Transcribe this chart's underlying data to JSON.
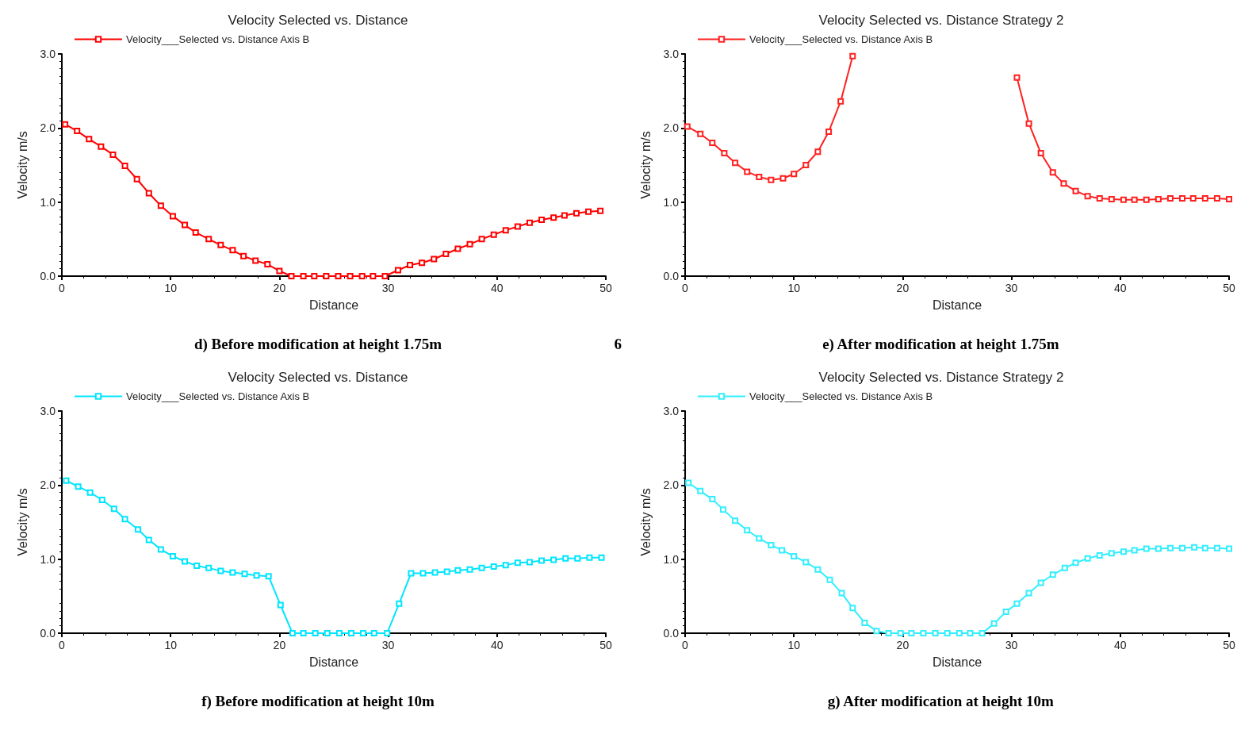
{
  "chart_data": [
    {
      "type": "line",
      "title": "Velocity Selected vs. Distance",
      "xlabel": "Distance",
      "ylabel": "Velocity m/s",
      "legend": "top left",
      "marker": "square",
      "line_style": "solid",
      "grid": false,
      "xlim": [
        0,
        50
      ],
      "xticks": [
        0,
        10,
        20,
        30,
        40,
        50
      ],
      "ylim": [
        0,
        3
      ],
      "yticks": [
        {
          "value": 0,
          "label": "0.0"
        },
        {
          "value": 1,
          "label": "1.0"
        },
        {
          "value": 2,
          "label": "2.0"
        },
        {
          "value": 3,
          "label": "3.0"
        }
      ],
      "annotations": [
        "d) Before modification at height 1.75m",
        "6"
      ],
      "series": [
        {
          "name": "Velocity___Selected vs. Distance Axis B",
          "color": "#ff0000",
          "x": [
            0.3,
            1.4,
            2.5,
            3.6,
            4.7,
            5.8,
            6.9,
            8.0,
            9.1,
            10.2,
            11.3,
            12.3,
            13.5,
            14.6,
            15.7,
            16.7,
            17.8,
            18.9,
            20.0,
            21.1,
            22.2,
            23.2,
            24.3,
            25.4,
            26.5,
            27.6,
            28.6,
            29.7,
            30.9,
            32.0,
            33.1,
            34.2,
            35.3,
            36.4,
            37.5,
            38.6,
            39.7,
            40.8,
            41.9,
            43.0,
            44.1,
            45.2,
            46.2,
            47.3,
            48.4,
            49.5
          ],
          "values": [
            2.05,
            1.96,
            1.85,
            1.75,
            1.64,
            1.49,
            1.31,
            1.12,
            0.95,
            0.81,
            0.69,
            0.59,
            0.5,
            0.42,
            0.35,
            0.27,
            0.21,
            0.16,
            0.07,
            0,
            0,
            0,
            0,
            0,
            0,
            0,
            0,
            0,
            0.08,
            0.15,
            0.18,
            0.23,
            0.3,
            0.37,
            0.43,
            0.5,
            0.56,
            0.62,
            0.67,
            0.72,
            0.76,
            0.79,
            0.82,
            0.85,
            0.87,
            0.88
          ]
        }
      ]
    },
    {
      "type": "line",
      "title": "Velocity Selected vs. Distance Strategy 2",
      "xlabel": "Distance",
      "ylabel": "Velocity m/s",
      "legend": "top left",
      "marker": "square",
      "line_style": "solid",
      "grid": false,
      "xlim": [
        0,
        50
      ],
      "xticks": [
        0,
        10,
        20,
        30,
        40,
        50
      ],
      "ylim": [
        0,
        3
      ],
      "yticks": [
        {
          "value": 0,
          "label": "0.0"
        },
        {
          "value": 1,
          "label": "1.0"
        },
        {
          "value": 2,
          "label": "2.0"
        },
        {
          "value": 3,
          "label": "3.0"
        }
      ],
      "annotations": [
        "e) After modification at height 1.75m"
      ],
      "series": [
        {
          "name": "Velocity___Selected vs. Distance Axis B",
          "color": "#ff2020",
          "x": [
            0.2,
            1.4,
            2.5,
            3.6,
            4.6,
            5.7,
            6.8,
            7.9,
            9.0,
            10.0,
            11.1,
            12.2,
            13.2,
            14.3,
            15.4,
            22.0,
            30.5,
            31.6,
            32.7,
            33.8,
            34.8,
            35.9,
            37.0,
            38.1,
            39.2,
            40.3,
            41.3,
            42.4,
            43.5,
            44.6,
            45.7,
            46.7,
            47.8,
            48.9,
            50.0
          ],
          "values": [
            2.02,
            1.92,
            1.8,
            1.66,
            1.53,
            1.41,
            1.34,
            1.3,
            1.32,
            1.38,
            1.5,
            1.68,
            1.95,
            2.36,
            2.97,
            null,
            2.68,
            2.06,
            1.66,
            1.4,
            1.25,
            1.15,
            1.08,
            1.05,
            1.04,
            1.03,
            1.03,
            1.03,
            1.04,
            1.05,
            1.05,
            1.05,
            1.05,
            1.05,
            1.04
          ]
        }
      ]
    },
    {
      "type": "line",
      "title": "Velocity Selected vs. Distance",
      "xlabel": "Distance",
      "ylabel": "Velocity m/s",
      "legend": "top left",
      "marker": "square",
      "line_style": "solid",
      "grid": false,
      "xlim": [
        0,
        50
      ],
      "xticks": [
        0,
        10,
        20,
        30,
        40,
        50
      ],
      "ylim": [
        0,
        3
      ],
      "yticks": [
        {
          "value": 0,
          "label": "0.0"
        },
        {
          "value": 1,
          "label": "1.0"
        },
        {
          "value": 2,
          "label": "2.0"
        },
        {
          "value": 3,
          "label": "3.0"
        }
      ],
      "annotations": [
        "f) Before modification at height 10m"
      ],
      "series": [
        {
          "name": "Velocity___Selected vs. Distance Axis B",
          "color": "#00e5ff",
          "x": [
            0.4,
            1.5,
            2.6,
            3.7,
            4.8,
            5.8,
            7.0,
            8.0,
            9.1,
            10.2,
            11.3,
            12.4,
            13.5,
            14.6,
            15.7,
            16.8,
            17.9,
            19.0,
            20.1,
            21.2,
            22.2,
            23.3,
            24.4,
            25.5,
            26.6,
            27.7,
            28.7,
            29.9,
            31.0,
            32.1,
            33.2,
            34.3,
            35.4,
            36.4,
            37.5,
            38.6,
            39.7,
            40.8,
            41.9,
            43.0,
            44.1,
            45.2,
            46.3,
            47.4,
            48.5,
            49.6
          ],
          "values": [
            2.06,
            1.98,
            1.9,
            1.8,
            1.68,
            1.54,
            1.4,
            1.26,
            1.13,
            1.04,
            0.97,
            0.91,
            0.88,
            0.84,
            0.82,
            0.8,
            0.78,
            0.77,
            0.38,
            0,
            0,
            0,
            0,
            0,
            0,
            0,
            0,
            0,
            0.4,
            0.81,
            0.81,
            0.82,
            0.83,
            0.85,
            0.86,
            0.88,
            0.9,
            0.92,
            0.95,
            0.96,
            0.98,
            0.99,
            1.01,
            1.01,
            1.02,
            1.02
          ]
        }
      ]
    },
    {
      "type": "line",
      "title": "Velocity Selected vs. Distance Strategy 2",
      "xlabel": "Distance",
      "ylabel": "Velocity m/s",
      "legend": "top left",
      "marker": "square",
      "line_style": "solid",
      "grid": false,
      "xlim": [
        0,
        50
      ],
      "xticks": [
        0,
        10,
        20,
        30,
        40,
        50
      ],
      "ylim": [
        0,
        3
      ],
      "yticks": [
        {
          "value": 0,
          "label": "0.0"
        },
        {
          "value": 1,
          "label": "1.0"
        },
        {
          "value": 2,
          "label": "2.0"
        },
        {
          "value": 3,
          "label": "3.0"
        }
      ],
      "annotations": [
        "g) After modification at height 10m"
      ],
      "series": [
        {
          "name": "Velocity___Selected vs. Distance Axis B",
          "color": "#33eeff",
          "x": [
            0.3,
            1.4,
            2.5,
            3.5,
            4.6,
            5.7,
            6.8,
            7.9,
            8.9,
            10.0,
            11.1,
            12.2,
            13.3,
            14.4,
            15.4,
            16.5,
            17.6,
            18.7,
            19.8,
            20.8,
            21.9,
            23.0,
            24.1,
            25.2,
            26.2,
            27.3,
            28.4,
            29.5,
            30.5,
            31.6,
            32.7,
            33.8,
            34.9,
            35.9,
            37.0,
            38.1,
            39.2,
            40.3,
            41.3,
            42.4,
            43.5,
            44.6,
            45.7,
            46.8,
            47.8,
            48.9,
            50.0
          ],
          "values": [
            2.03,
            1.92,
            1.81,
            1.67,
            1.52,
            1.39,
            1.28,
            1.19,
            1.12,
            1.04,
            0.96,
            0.86,
            0.72,
            0.54,
            0.34,
            0.14,
            0.03,
            0,
            0,
            0,
            0,
            0,
            0,
            0,
            0,
            0,
            0.13,
            0.29,
            0.4,
            0.54,
            0.68,
            0.79,
            0.88,
            0.95,
            1.01,
            1.05,
            1.08,
            1.1,
            1.12,
            1.14,
            1.14,
            1.15,
            1.15,
            1.16,
            1.15,
            1.15,
            1.14
          ]
        }
      ]
    }
  ]
}
